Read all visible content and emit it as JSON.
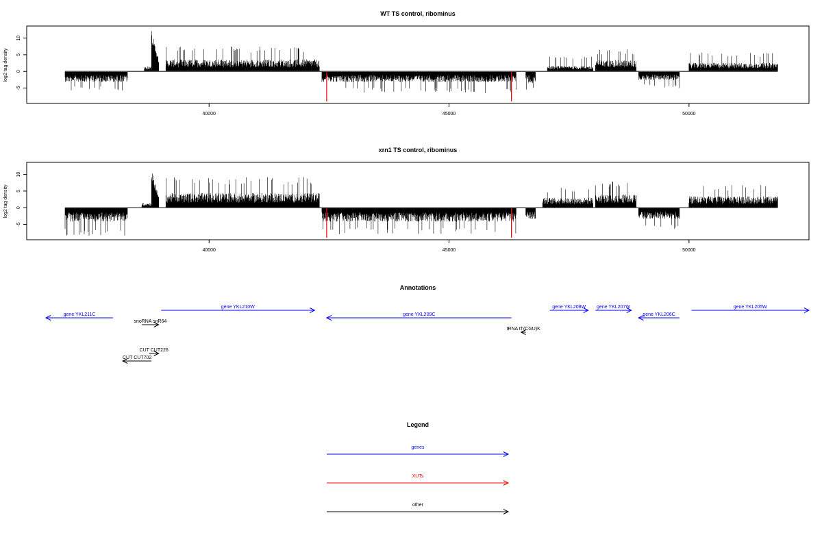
{
  "colors": {
    "genes": "#0000ff",
    "xuts": "#ff0000",
    "other": "#000000",
    "signal": "#000000",
    "axis": "#000000"
  },
  "chart_data": [
    {
      "type": "bar",
      "title": "WT TS control, ribominus",
      "ylabel": "log2 tag density",
      "xlim": [
        36200,
        52500
      ],
      "ylim": [
        -9,
        13
      ],
      "x_ticks": [
        40000,
        45000,
        50000
      ],
      "y_ticks": [
        -5,
        0,
        5,
        10
      ],
      "signal_segments": [
        {
          "start": 37000,
          "end": 38300,
          "strand": "minus",
          "typical": 3.2,
          "max": 6
        },
        {
          "start": 38650,
          "end": 38850,
          "strand": "plus",
          "typical": 1.5,
          "max": 4
        },
        {
          "start": 38800,
          "end": 38950,
          "strand": "plus",
          "typical": 8,
          "max": 12.3
        },
        {
          "start": 39100,
          "end": 42300,
          "strand": "plus",
          "typical": 3.6,
          "max": 7.5
        },
        {
          "start": 42350,
          "end": 46400,
          "strand": "minus",
          "typical": 3.2,
          "max": 6.5
        },
        {
          "start": 46600,
          "end": 46800,
          "strand": "minus",
          "typical": 3.5,
          "max": 6.5
        },
        {
          "start": 47050,
          "end": 48000,
          "strand": "plus",
          "typical": 1.6,
          "max": 4.5
        },
        {
          "start": 48050,
          "end": 48900,
          "strand": "plus",
          "typical": 3.4,
          "max": 6.8
        },
        {
          "start": 48950,
          "end": 49800,
          "strand": "minus",
          "typical": 2.6,
          "max": 5
        },
        {
          "start": 50000,
          "end": 51850,
          "strand": "plus",
          "typical": 2.6,
          "max": 5.8
        }
      ],
      "xut_spikes": [
        {
          "x": 42450,
          "depth": -9
        },
        {
          "x": 46300,
          "depth": -9
        }
      ]
    },
    {
      "type": "bar",
      "title": "xrn1 TS control, ribominus",
      "ylabel": "log2 tag density",
      "xlim": [
        36200,
        52500
      ],
      "ylim": [
        -9,
        13
      ],
      "x_ticks": [
        40000,
        45000,
        50000
      ],
      "y_ticks": [
        -5,
        0,
        5,
        10
      ],
      "signal_segments": [
        {
          "start": 37000,
          "end": 38300,
          "strand": "minus",
          "typical": 4.2,
          "max": 8.5
        },
        {
          "start": 38600,
          "end": 38850,
          "strand": "plus",
          "typical": 1.5,
          "max": 4
        },
        {
          "start": 38800,
          "end": 38950,
          "strand": "plus",
          "typical": 8,
          "max": 11.6
        },
        {
          "start": 39100,
          "end": 42300,
          "strand": "plus",
          "typical": 4.4,
          "max": 9.2
        },
        {
          "start": 42350,
          "end": 46400,
          "strand": "minus",
          "typical": 4.2,
          "max": 8
        },
        {
          "start": 46600,
          "end": 46800,
          "strand": "minus",
          "typical": 3.5,
          "max": 6.5
        },
        {
          "start": 46950,
          "end": 48000,
          "strand": "plus",
          "typical": 3,
          "max": 6
        },
        {
          "start": 48050,
          "end": 48900,
          "strand": "plus",
          "typical": 4,
          "max": 8.3
        },
        {
          "start": 48950,
          "end": 49800,
          "strand": "minus",
          "typical": 3.4,
          "max": 6.5
        },
        {
          "start": 50000,
          "end": 51850,
          "strand": "plus",
          "typical": 3.4,
          "max": 6.8
        }
      ],
      "xut_spikes": [
        {
          "x": 42450,
          "depth": -9
        },
        {
          "x": 46300,
          "depth": -9
        }
      ]
    }
  ],
  "annotations": {
    "title": "Annotations",
    "features": [
      {
        "label": "gene YKL211C",
        "start": 36600,
        "end": 38000,
        "strand": "-",
        "row": 1,
        "kind": "genes"
      },
      {
        "label": "gene YKL210W",
        "start": 39000,
        "end": 42200,
        "strand": "+",
        "row": 0,
        "kind": "genes"
      },
      {
        "label": "gene YKL209C",
        "start": 42450,
        "end": 46300,
        "strand": "-",
        "row": 1,
        "kind": "genes"
      },
      {
        "label": "gene YKL208W",
        "start": 47100,
        "end": 47900,
        "strand": "+",
        "row": 0,
        "kind": "genes"
      },
      {
        "label": "gene YKL207W",
        "start": 48050,
        "end": 48800,
        "strand": "+",
        "row": 0,
        "kind": "genes"
      },
      {
        "label": "gene YKL206C",
        "start": 48950,
        "end": 49800,
        "strand": "-",
        "row": 1,
        "kind": "genes"
      },
      {
        "label": "gene YKL205W",
        "start": 50050,
        "end": 52500,
        "strand": "+",
        "row": 0,
        "kind": "genes"
      },
      {
        "label": "snoRNA snR64",
        "start": 38600,
        "end": 38950,
        "strand": "+",
        "row": 2,
        "kind": "other"
      },
      {
        "label": "tRNA tT(CGU)K",
        "start": 46500,
        "end": 46600,
        "strand": "-",
        "row": 3,
        "kind": "other"
      },
      {
        "label": "CUT CUT226",
        "start": 38750,
        "end": 38950,
        "strand": "+",
        "row": 5,
        "kind": "other"
      },
      {
        "label": "CUT CUT702",
        "start": 38200,
        "end": 38800,
        "strand": "-",
        "row": 6,
        "kind": "other"
      }
    ]
  },
  "legend": {
    "title": "Legend",
    "entries": [
      {
        "label": "genes",
        "kind": "genes"
      },
      {
        "label": "XUTs",
        "kind": "xuts"
      },
      {
        "label": "other",
        "kind": "other"
      }
    ]
  }
}
